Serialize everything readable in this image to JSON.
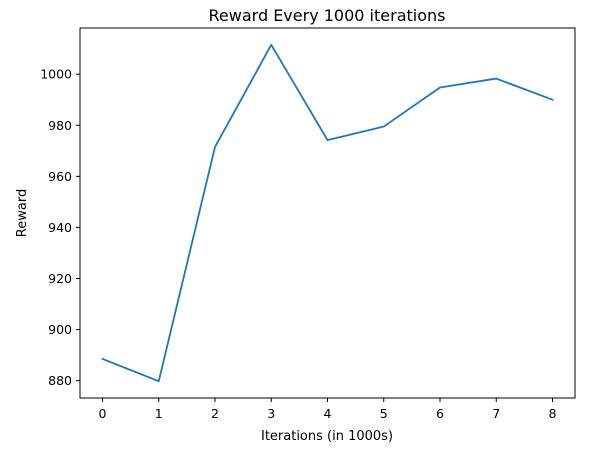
{
  "chart_data": {
    "type": "line",
    "title": "Reward Every 1000 iterations",
    "xlabel": "Iterations (in 1000s)",
    "ylabel": "Reward",
    "x": [
      0,
      1,
      2,
      3,
      4,
      5,
      6,
      7,
      8
    ],
    "series": [
      {
        "values": [
          888.5,
          879.8,
          971.5,
          1011.5,
          974.2,
          979.5,
          994.8,
          998.3,
          990.0
        ],
        "color": "#1f77b4"
      }
    ],
    "xticks": [
      "0",
      "1",
      "2",
      "3",
      "4",
      "5",
      "6",
      "7",
      "8"
    ],
    "yticks": [
      "880",
      "900",
      "920",
      "940",
      "960",
      "980",
      "1000"
    ],
    "ytick_values": [
      880,
      900,
      920,
      940,
      960,
      980,
      1000
    ],
    "xlim": [
      -0.4,
      8.4
    ],
    "ylim": [
      873.2,
      1018.1
    ],
    "grid": false
  }
}
